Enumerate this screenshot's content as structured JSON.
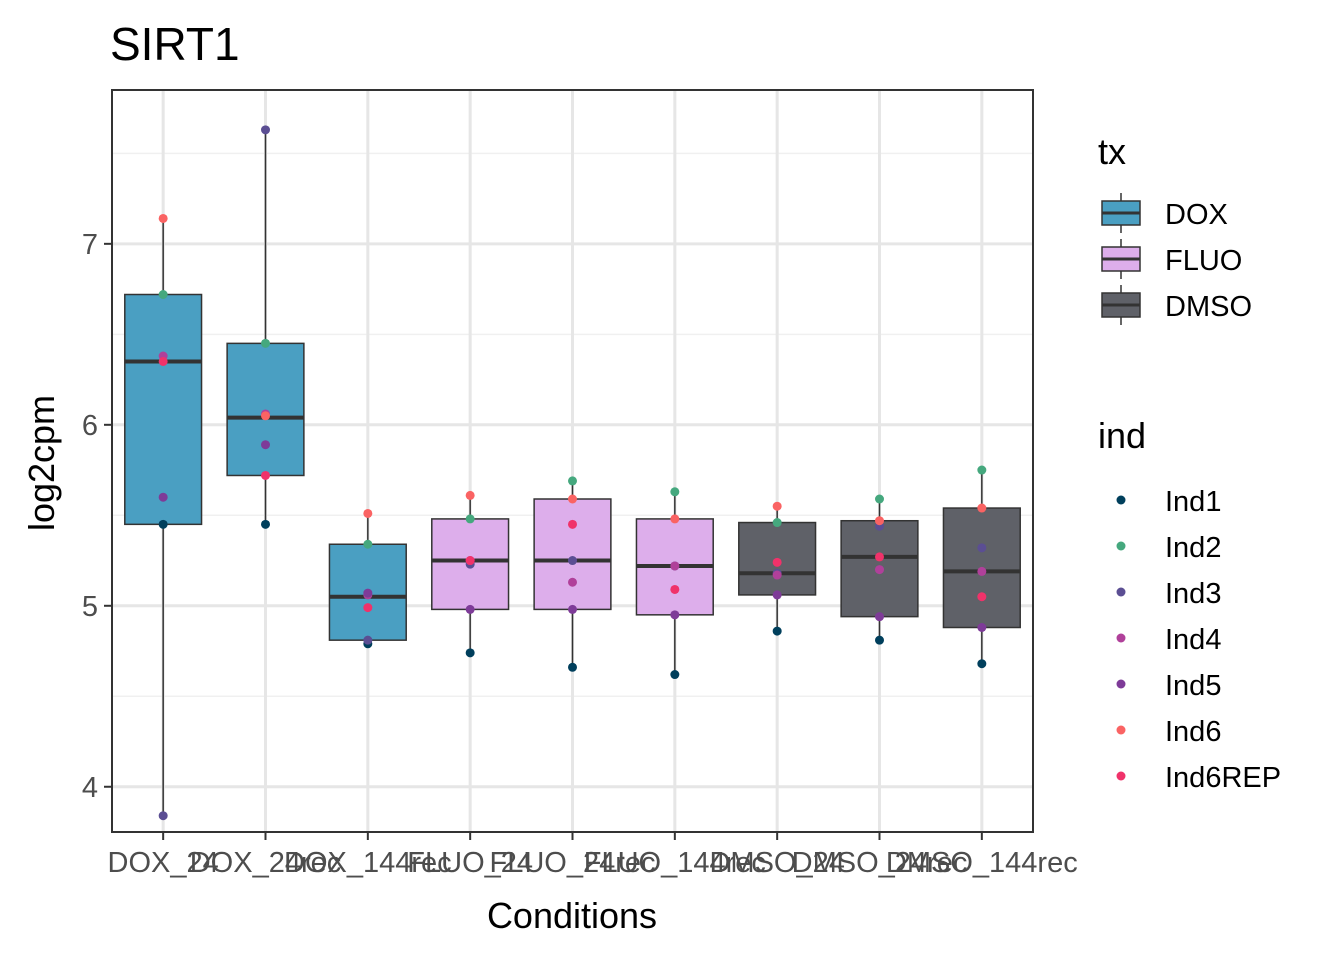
{
  "chart_data": {
    "type": "box",
    "title": "SIRT1",
    "xlabel": "Conditions",
    "ylabel": "log2cpm",
    "ylim": [
      3.75,
      7.85
    ],
    "yticks": [
      4,
      5,
      6,
      7
    ],
    "grid": true,
    "categories": [
      "DOX_24",
      "DOX_24rec",
      "DOX_144rec",
      "FLUO_24",
      "FLUO_24rec",
      "FLUO_144rec",
      "DMSO_24",
      "DMSO_24rec",
      "DMSO_144rec"
    ],
    "tx": [
      "DOX",
      "DOX",
      "DOX",
      "FLUO",
      "FLUO",
      "FLUO",
      "DMSO",
      "DMSO",
      "DMSO"
    ],
    "box_stats": [
      {
        "whisker_low": 3.84,
        "q1": 5.45,
        "median": 6.35,
        "q3": 6.72,
        "whisker_high": 7.14
      },
      {
        "whisker_low": 5.45,
        "q1": 5.72,
        "median": 6.04,
        "q3": 6.45,
        "whisker_high": 7.63
      },
      {
        "whisker_low": 4.79,
        "q1": 4.81,
        "median": 5.05,
        "q3": 5.34,
        "whisker_high": 5.51
      },
      {
        "whisker_low": 4.74,
        "q1": 4.98,
        "median": 5.25,
        "q3": 5.48,
        "whisker_high": 5.61
      },
      {
        "whisker_low": 4.66,
        "q1": 4.98,
        "median": 5.25,
        "q3": 5.59,
        "whisker_high": 5.69
      },
      {
        "whisker_low": 4.62,
        "q1": 4.95,
        "median": 5.22,
        "q3": 5.48,
        "whisker_high": 5.63
      },
      {
        "whisker_low": 4.86,
        "q1": 5.06,
        "median": 5.18,
        "q3": 5.46,
        "whisker_high": 5.55
      },
      {
        "whisker_low": 4.81,
        "q1": 4.94,
        "median": 5.27,
        "q3": 5.47,
        "whisker_high": 5.59
      },
      {
        "whisker_low": 4.68,
        "q1": 4.88,
        "median": 5.19,
        "q3": 5.54,
        "whisker_high": 5.75
      }
    ],
    "points": {
      "Ind1": [
        5.45,
        5.45,
        4.79,
        4.74,
        4.66,
        4.62,
        4.86,
        4.81,
        4.68
      ],
      "Ind2": [
        6.72,
        6.45,
        5.34,
        5.48,
        5.69,
        5.63,
        5.46,
        5.59,
        5.75
      ],
      "Ind3": [
        3.84,
        7.63,
        4.81,
        5.23,
        5.25,
        5.22,
        5.18,
        5.44,
        5.32
      ],
      "Ind4": [
        6.38,
        6.06,
        5.06,
        5.25,
        5.13,
        5.22,
        5.17,
        5.2,
        5.19
      ],
      "Ind5": [
        5.6,
        5.89,
        5.07,
        4.98,
        4.98,
        4.95,
        5.06,
        4.94,
        4.88
      ],
      "Ind6": [
        7.14,
        6.05,
        5.51,
        5.61,
        5.59,
        5.48,
        5.55,
        5.47,
        5.54
      ],
      "Ind6REP": [
        6.35,
        5.72,
        4.99,
        5.25,
        5.45,
        5.09,
        5.24,
        5.27,
        5.05
      ]
    },
    "legend": {
      "tx": {
        "title": "tx",
        "items": [
          {
            "label": "DOX",
            "color": "#4A9FC2"
          },
          {
            "label": "FLUO",
            "color": "#DDAEEB"
          },
          {
            "label": "DMSO",
            "color": "#5F6168"
          }
        ]
      },
      "ind": {
        "title": "ind",
        "items": [
          {
            "label": "Ind1",
            "color": "#003F5C"
          },
          {
            "label": "Ind2",
            "color": "#45A87E"
          },
          {
            "label": "Ind3",
            "color": "#5B4E93"
          },
          {
            "label": "Ind4",
            "color": "#B0409A"
          },
          {
            "label": "Ind5",
            "color": "#7E3B98"
          },
          {
            "label": "Ind6",
            "color": "#FA6363"
          },
          {
            "label": "Ind6REP",
            "color": "#F0326A"
          }
        ]
      }
    }
  }
}
